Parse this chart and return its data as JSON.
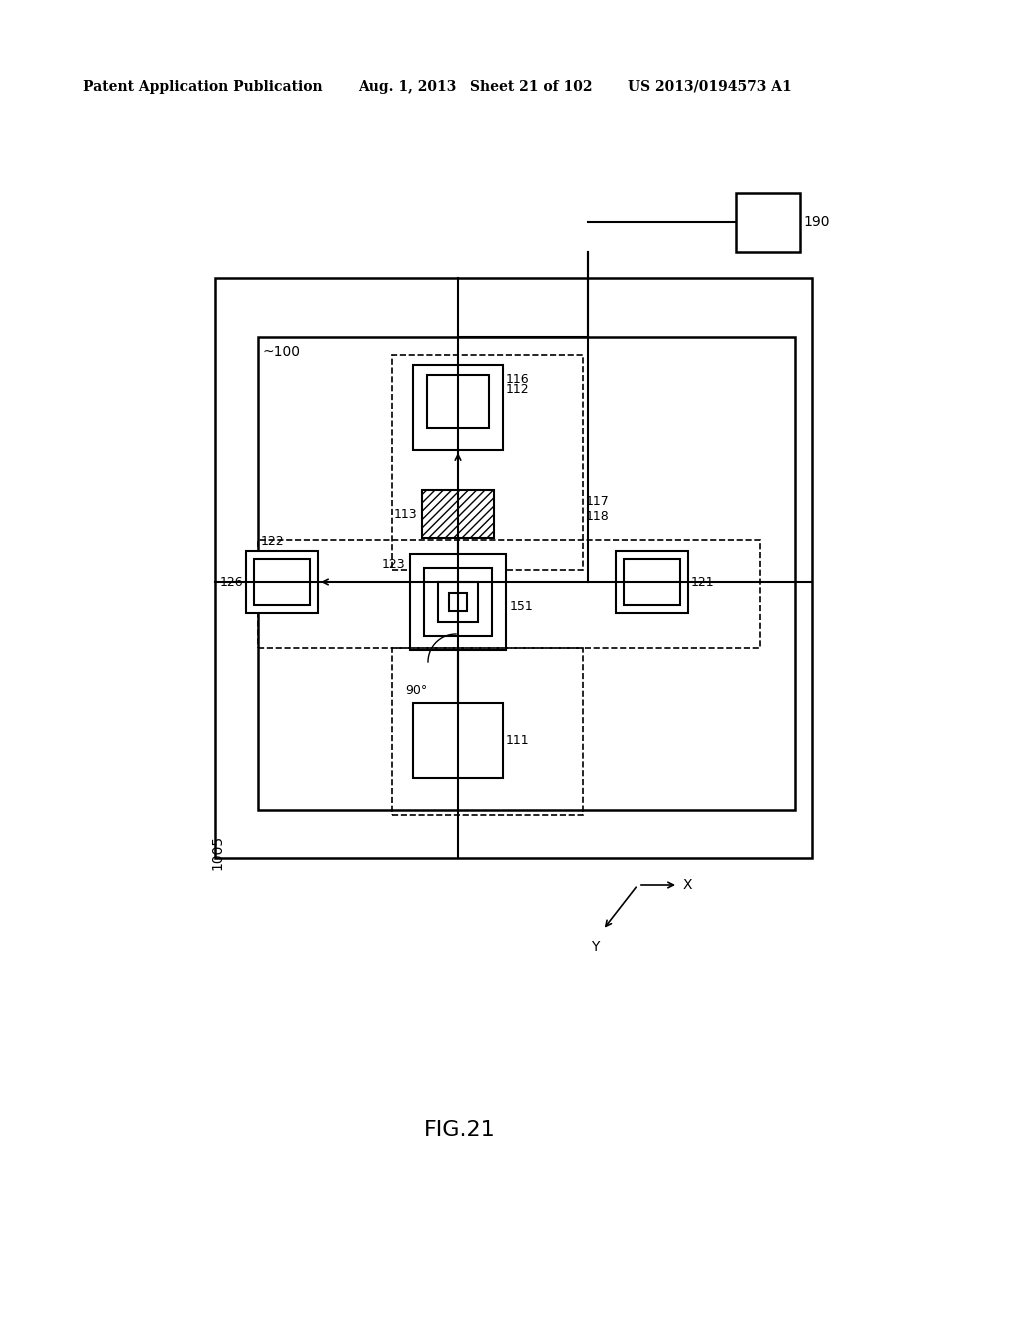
{
  "bg_color": "#ffffff",
  "header_left": "Patent Application Publication",
  "header_date": "Aug. 1, 2013",
  "header_sheet": "Sheet 21 of 102",
  "header_patent": "US 2013/0194573 A1",
  "fig_label": "FIG.21",
  "lbl_1005": "1005",
  "lbl_100": "100",
  "lbl_190": "190",
  "lbl_111": "111",
  "lbl_112": "112",
  "lbl_113": "113",
  "lbl_116": "116",
  "lbl_117": "117",
  "lbl_118": "118",
  "lbl_121": "121",
  "lbl_122": "122",
  "lbl_123": "123",
  "lbl_126": "126",
  "lbl_151": "151",
  "lbl_90": "90°",
  "lbl_X": "X",
  "lbl_Y": "Y"
}
